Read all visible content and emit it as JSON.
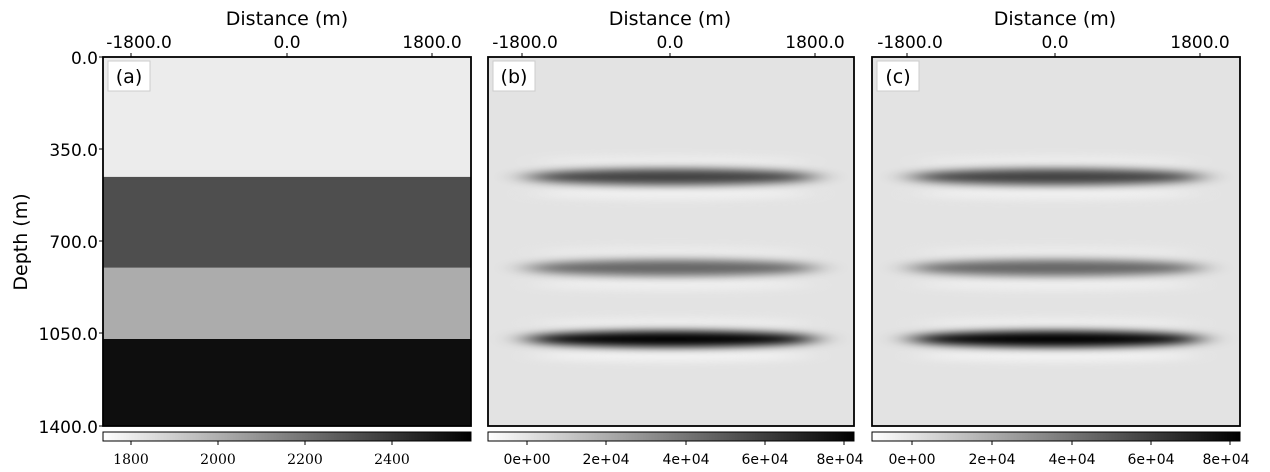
{
  "chart_data": [
    {
      "type": "heatmap",
      "panel_label": "(a)",
      "xlabel": "Distance (m)",
      "ylabel": "Depth (m)",
      "xlim": [
        -2850,
        2850
      ],
      "ylim": [
        1400,
        0
      ],
      "x_tick_labels": [
        "-1800.0",
        "0.0",
        "1800.0"
      ],
      "y_tick_labels": [
        "0.0",
        "350.0",
        "700.0",
        "1050.0",
        "1400.0"
      ],
      "layers": [
        {
          "depth_top": 0,
          "depth_bottom": 455,
          "value": 1750
        },
        {
          "depth_top": 455,
          "depth_bottom": 800,
          "value": 2300
        },
        {
          "depth_top": 800,
          "depth_bottom": 1070,
          "value": 2050
        },
        {
          "depth_top": 1070,
          "depth_bottom": 1400,
          "value": 2500
        }
      ],
      "colorbar": {
        "min": 1700,
        "max": 2550,
        "tick_labels": [
          "1800",
          "2000",
          "2200",
          "2400"
        ],
        "colormap": "white-to-black"
      }
    },
    {
      "type": "heatmap",
      "panel_label": "(b)",
      "xlabel": "Distance (m)",
      "xlim": [
        -2850,
        2850
      ],
      "ylim": [
        1400,
        0
      ],
      "x_tick_labels": [
        "-1800.0",
        "0.0",
        "1800.0"
      ],
      "reflectors": [
        {
          "depth": 455,
          "amplitude": 0.62
        },
        {
          "depth": 800,
          "amplitude": 0.4
        },
        {
          "depth": 1070,
          "amplitude": 1.0
        }
      ],
      "colorbar": {
        "min": -3000,
        "max": 83000,
        "tick_labels": [
          "0e+00",
          "2e+04",
          "4e+04",
          "6e+04",
          "8e+04"
        ],
        "colormap": "white-to-black"
      }
    },
    {
      "type": "heatmap",
      "panel_label": "(c)",
      "xlabel": "Distance (m)",
      "xlim": [
        -2850,
        2850
      ],
      "ylim": [
        1400,
        0
      ],
      "x_tick_labels": [
        "-1800.0",
        "0.0",
        "1800.0"
      ],
      "reflectors": [
        {
          "depth": 455,
          "amplitude": 0.62
        },
        {
          "depth": 800,
          "amplitude": 0.4
        },
        {
          "depth": 1070,
          "amplitude": 1.0
        }
      ],
      "colorbar": {
        "min": -3000,
        "max": 83000,
        "tick_labels": [
          "0e+00",
          "2e+04",
          "4e+04",
          "6e+04",
          "8e+04"
        ],
        "colormap": "white-to-black"
      }
    }
  ]
}
